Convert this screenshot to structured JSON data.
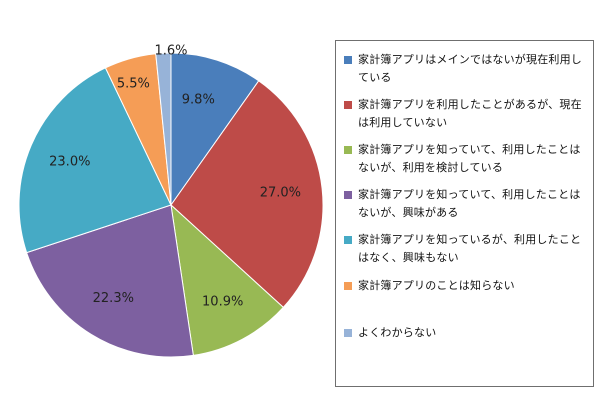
{
  "chart_data": {
    "type": "pie",
    "categories": [
      "家計簿アプリはメインではないが現在利用している",
      "家計簿アプリを利用したことがあるが、現在は利用していない",
      "家計簿アプリを知っていて、利用したことはないが、利用を検討している",
      "家計簿アプリを知っていて、利用したことはないが、興味がある",
      "家計簿アプリを知っているが、利用したことはなく、興味もない",
      "家計簿アプリのことは知らない",
      "よくわからない"
    ],
    "values": [
      9.8,
      27.0,
      10.9,
      22.3,
      23.0,
      5.5,
      1.6
    ],
    "value_labels": [
      "9.8%",
      "27.0%",
      "10.9%",
      "22.3%",
      "23.0%",
      "5.5%",
      "1.6%"
    ],
    "colors": [
      "#4A7EBB",
      "#BE4B48",
      "#98B954",
      "#7D60A0",
      "#46AAC5",
      "#F59D56",
      "#97B3D8"
    ],
    "legend_position": "right",
    "start_angle": "top, clockwise"
  }
}
